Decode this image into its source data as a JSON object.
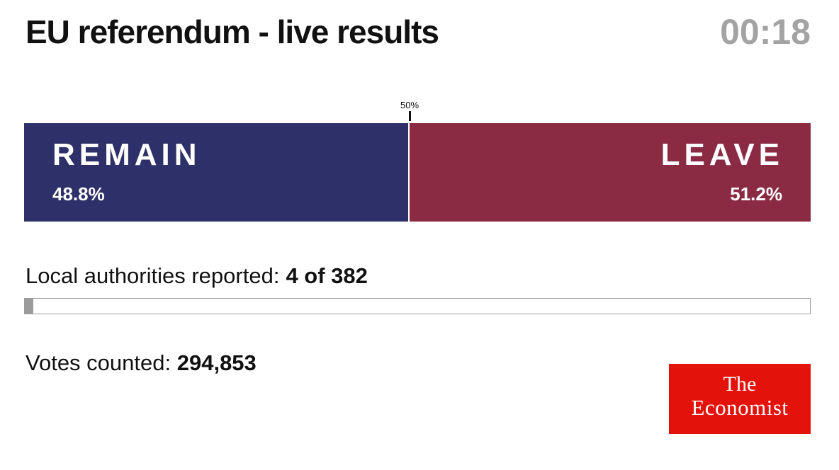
{
  "header": {
    "title": "EU referendum - live results",
    "clock": "00:18"
  },
  "chart_data": {
    "type": "bar",
    "orientation": "horizontal-stacked",
    "marker_label": "50%",
    "marker_value": 50,
    "categories": [
      "REMAIN",
      "LEAVE"
    ],
    "values": [
      48.8,
      51.2
    ],
    "value_labels": [
      "48.8%",
      "51.2%"
    ],
    "colors": [
      "#2e3169",
      "#8a2b43"
    ],
    "xlim": [
      0,
      100
    ]
  },
  "reporting": {
    "label": "Local authorities reported:",
    "value": "4 of 382",
    "reported": 4,
    "total": 382,
    "bar_color": "#9b9b9b"
  },
  "votes": {
    "label": "Votes counted:",
    "value": "294,853"
  },
  "logo": {
    "line1": "The",
    "line2": "Economist",
    "color": "#e3120b"
  }
}
